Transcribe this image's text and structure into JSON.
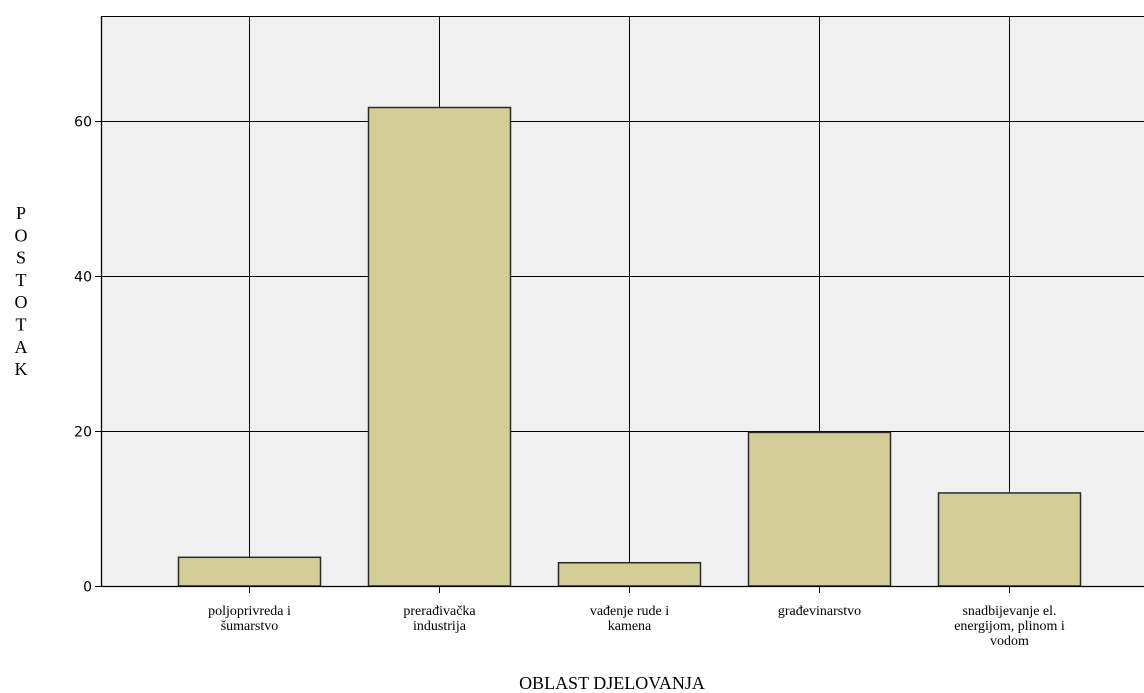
{
  "chart_data": {
    "type": "bar",
    "title": "",
    "xlabel": "OBLAST DJELOVANJA",
    "ylabel": "POSTOTAK",
    "categories": [
      [
        "poljoprivreda i",
        "šumarstvo"
      ],
      [
        "prerađivačka",
        "industrija"
      ],
      [
        "vađenje rude i",
        "kamena"
      ],
      [
        "građevinarstvo"
      ],
      [
        "snadbijevanje el.",
        "energijom, plinom i",
        "vodom"
      ]
    ],
    "values": [
      3.7,
      61.7,
      3.0,
      19.8,
      12.0
    ],
    "ylim": [
      0,
      73.5
    ],
    "yticks": [
      0,
      20,
      40,
      60
    ],
    "grid": true,
    "legend": "none"
  },
  "colors": {
    "plot_background": "#f0f0f0",
    "bar_fill": "#d3ce96",
    "bar_stroke": "#2b2b2b",
    "grid": "#000000"
  }
}
